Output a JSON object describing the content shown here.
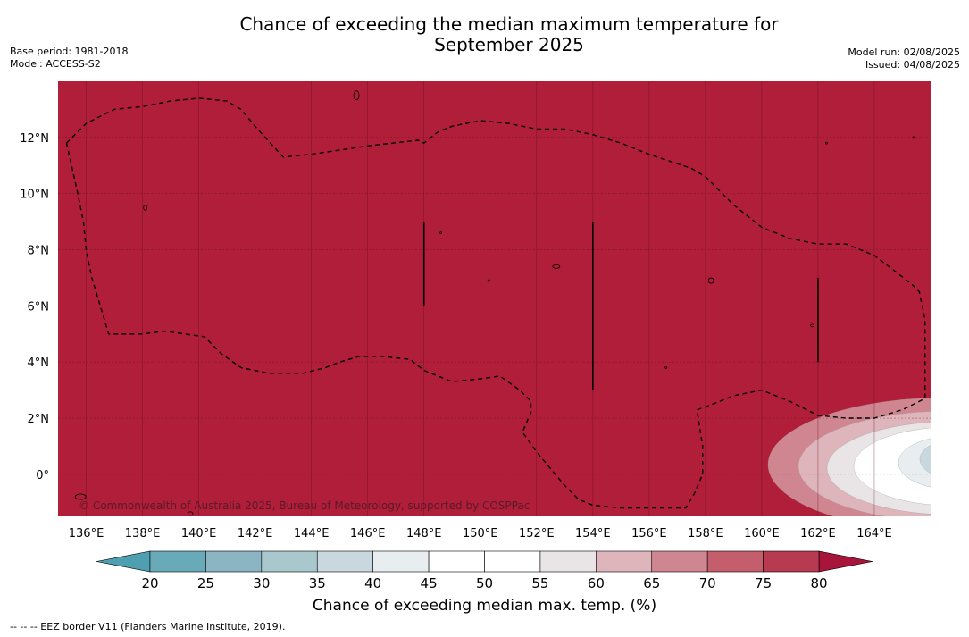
{
  "title": {
    "line1": "Chance of exceeding the median maximum temperature for",
    "line2": "September 2025"
  },
  "meta": {
    "base_period": "Base period: 1981-2018",
    "model": "Model: ACCESS-S2",
    "model_run": "Model run: 02/08/2025",
    "issued": "Issued: 04/08/2025"
  },
  "map": {
    "lon_range": [
      135,
      166
    ],
    "lat_range": [
      -1.5,
      14
    ],
    "background_color": "#b01e3a",
    "x_ticks": [
      "136°E",
      "138°E",
      "140°E",
      "142°E",
      "144°E",
      "146°E",
      "148°E",
      "150°E",
      "152°E",
      "154°E",
      "156°E",
      "158°E",
      "160°E",
      "162°E",
      "164°E"
    ],
    "x_tick_values": [
      136,
      138,
      140,
      142,
      144,
      146,
      148,
      150,
      152,
      154,
      156,
      158,
      160,
      162,
      164
    ],
    "y_ticks": [
      "12°N",
      "10°N",
      "8°N",
      "6°N",
      "4°N",
      "2°N",
      "0°"
    ],
    "y_tick_values": [
      12,
      10,
      8,
      6,
      4,
      2,
      0
    ],
    "copyright": "© Commonwealth of Australia 2025, Bureau of Meteorology, supported by COSPPac",
    "eez_border": [
      [
        135.3,
        11.8
      ],
      [
        136,
        12.5
      ],
      [
        137,
        13
      ],
      [
        138,
        13.1
      ],
      [
        139,
        13.3
      ],
      [
        140,
        13.4
      ],
      [
        141,
        13.3
      ],
      [
        141.5,
        13
      ],
      [
        142,
        12.4
      ],
      [
        143,
        11.3
      ],
      [
        144,
        11.4
      ],
      [
        146,
        11.7
      ],
      [
        147.8,
        11.9
      ],
      [
        148,
        11.8
      ],
      [
        148.5,
        12.2
      ],
      [
        149,
        12.4
      ],
      [
        150,
        12.6
      ],
      [
        151,
        12.5
      ],
      [
        152,
        12.3
      ],
      [
        153,
        12.3
      ],
      [
        154,
        12.1
      ],
      [
        155,
        11.8
      ],
      [
        156,
        11.4
      ],
      [
        157.5,
        10.9
      ],
      [
        158,
        10.6
      ],
      [
        159,
        9.6
      ],
      [
        160,
        8.8
      ],
      [
        161,
        8.4
      ],
      [
        162,
        8.2
      ],
      [
        163,
        8.2
      ],
      [
        164,
        7.8
      ],
      [
        165.3,
        6.8
      ],
      [
        165.6,
        6.5
      ],
      [
        165.8,
        5.5
      ],
      [
        165.8,
        2.7
      ],
      [
        165,
        2.3
      ],
      [
        164,
        2
      ],
      [
        163,
        2
      ],
      [
        162,
        2.1
      ],
      [
        161,
        2.6
      ],
      [
        160,
        3
      ],
      [
        159,
        2.8
      ],
      [
        158,
        2.4
      ],
      [
        157.7,
        2.3
      ],
      [
        157.9,
        1
      ],
      [
        157.9,
        0
      ],
      [
        157.6,
        -0.7
      ],
      [
        157.3,
        -1.2
      ],
      [
        156,
        -1.2
      ],
      [
        155,
        -1.2
      ],
      [
        154,
        -1.1
      ],
      [
        153.5,
        -0.9
      ],
      [
        153,
        -0.4
      ],
      [
        152.5,
        0.2
      ],
      [
        152,
        0.8
      ],
      [
        151.5,
        1.5
      ],
      [
        151.8,
        2.2
      ],
      [
        151.8,
        2.6
      ],
      [
        151.4,
        3
      ],
      [
        150.7,
        3.5
      ],
      [
        150,
        3.4
      ],
      [
        149,
        3.3
      ],
      [
        148,
        3.7
      ],
      [
        147.5,
        4.1
      ],
      [
        146.5,
        4.2
      ],
      [
        145.7,
        4.2
      ],
      [
        145,
        4.0
      ],
      [
        144.5,
        3.8
      ],
      [
        143.7,
        3.6
      ],
      [
        142.5,
        3.6
      ],
      [
        141.5,
        3.8
      ],
      [
        140.8,
        4.3
      ],
      [
        140.2,
        4.9
      ],
      [
        139.5,
        5
      ],
      [
        138.8,
        5.1
      ],
      [
        138,
        5
      ],
      [
        136.8,
        5
      ],
      [
        136.5,
        6
      ],
      [
        136.2,
        7
      ],
      [
        136,
        8
      ],
      [
        135.9,
        9
      ],
      [
        135.7,
        10
      ],
      [
        135.3,
        11.8
      ]
    ],
    "vertical_segments": [
      {
        "lon": 148.0,
        "lat_from": 6.0,
        "lat_to": 9.0
      },
      {
        "lon": 154.0,
        "lat_from": 3.0,
        "lat_to": 9.0
      },
      {
        "lon": 162.0,
        "lat_from": 4.0,
        "lat_to": 7.0
      }
    ]
  },
  "colorbar": {
    "ticks": [
      "20",
      "25",
      "30",
      "35",
      "40",
      "45",
      "50",
      "55",
      "60",
      "65",
      "70",
      "75",
      "80"
    ],
    "colors": [
      "#69aab9",
      "#8bb5c2",
      "#a9c8cd",
      "#c8d8de",
      "#e8edf0",
      "#ffffff",
      "#ffffff",
      "#e9e4e6",
      "#dfb5bc",
      "#d08690",
      "#c45e6d",
      "#b83a50"
    ],
    "under_color": "#4e9fb0",
    "over_color": "#a8153a",
    "label": "Chance of exceeding median max. temp. (%)"
  },
  "footer": {
    "legend": "--  --  -- EEZ border V11 (Flanders Marine Institute, 2019)."
  }
}
